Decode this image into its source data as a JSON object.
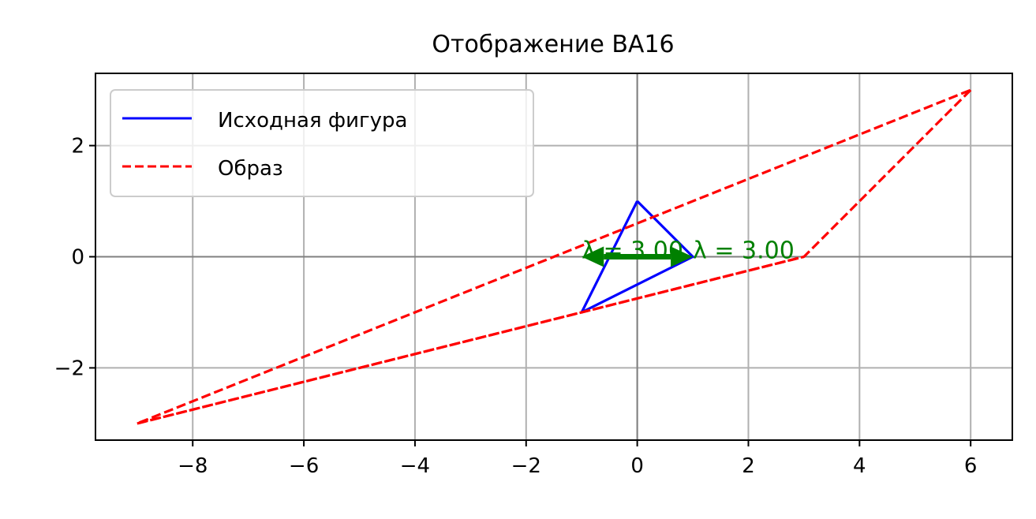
{
  "chart_data": {
    "type": "line",
    "title": "Отображение ВА16",
    "xlabel": "",
    "ylabel": "",
    "xlim": [
      -9.75,
      6.75
    ],
    "ylim": [
      -3.3,
      3.3
    ],
    "x_ticks": [
      -8,
      -6,
      -4,
      -2,
      0,
      2,
      4,
      6
    ],
    "y_ticks": [
      -2,
      0,
      2
    ],
    "x_tick_labels": [
      "−8",
      "−6",
      "−4",
      "−2",
      "0",
      "2",
      "4",
      "6"
    ],
    "y_tick_labels": [
      "−2",
      "0",
      "2"
    ],
    "grid": true,
    "legend_position": "upper-left",
    "series": [
      {
        "name": "Исходная фигура",
        "color": "#0000ff",
        "style": "solid",
        "x": [
          0,
          1,
          -1,
          0
        ],
        "y": [
          1,
          0,
          -1,
          1
        ]
      },
      {
        "name": "Образ",
        "color": "#ff0000",
        "style": "dashed",
        "x": [
          6,
          3,
          -9,
          6
        ],
        "y": [
          3,
          0,
          -3,
          3
        ]
      },
      {
        "name": "",
        "color": "#ff0000",
        "style": "dashed",
        "x": [
          -9,
          -1,
          3
        ],
        "y": [
          -3,
          -1,
          0
        ]
      }
    ],
    "eigen_arrows": {
      "color": "#008000",
      "vectors": [
        {
          "x0": 0,
          "y0": 0,
          "x1": 1,
          "y1": 0
        },
        {
          "x0": 0,
          "y0": 0,
          "x1": -1,
          "y1": 0
        }
      ]
    },
    "annotations": [
      {
        "text": "λ = 3.00",
        "x": -1,
        "y": 0
      },
      {
        "text": "λ = 3.00",
        "x": 1,
        "y": 0
      }
    ]
  }
}
